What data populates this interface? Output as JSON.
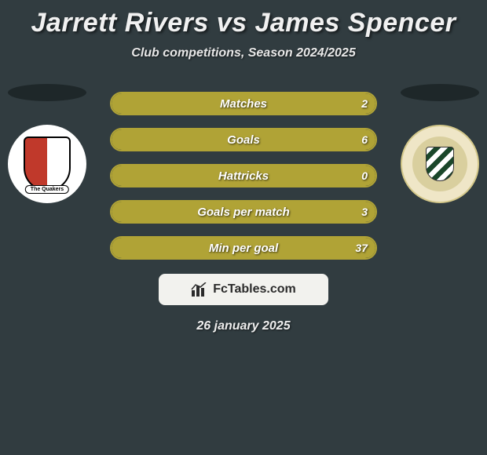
{
  "title": "Jarrett Rivers vs James Spencer",
  "subtitle": "Club competitions, Season 2024/2025",
  "date": "26 january 2025",
  "footer_brand": "FcTables.com",
  "colors": {
    "background": "#313c40",
    "bar_fill": "#b0a336",
    "bar_border": "#b0a336",
    "shadow": "#1e2729",
    "footer_bg": "#f2f2ee",
    "footer_text": "#2b2b2b"
  },
  "left_crest": {
    "banner_text": "The Quakers"
  },
  "stats": [
    {
      "label": "Matches",
      "value": "2",
      "fill_pct": 100
    },
    {
      "label": "Goals",
      "value": "6",
      "fill_pct": 100
    },
    {
      "label": "Hattricks",
      "value": "0",
      "fill_pct": 100
    },
    {
      "label": "Goals per match",
      "value": "3",
      "fill_pct": 100
    },
    {
      "label": "Min per goal",
      "value": "37",
      "fill_pct": 100
    }
  ]
}
